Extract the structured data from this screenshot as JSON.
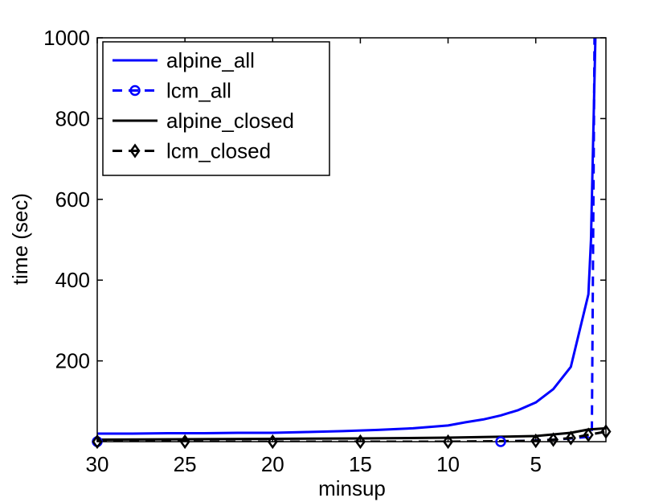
{
  "chart_data": {
    "type": "line",
    "title": "",
    "xlabel": "minsup",
    "ylabel": "time (sec)",
    "x_reversed": true,
    "xlim": [
      30,
      1
    ],
    "ylim": [
      0,
      1000
    ],
    "xticks": [
      30,
      25,
      20,
      15,
      10,
      5
    ],
    "yticks": [
      200,
      400,
      600,
      800,
      1000
    ],
    "grid": false,
    "legend_position": "top-left",
    "series": [
      {
        "name": "alpine_all",
        "color": "#0000ff",
        "line_style": "solid",
        "marker": "none",
        "x": [
          30,
          28,
          26,
          24,
          22,
          20,
          18,
          16,
          14,
          12,
          10,
          9,
          8,
          7,
          6,
          5,
          4,
          3,
          2,
          1.85,
          1.6
        ],
        "y": [
          20,
          20,
          21,
          21,
          22,
          22,
          24,
          26,
          29,
          33,
          40,
          48,
          55,
          65,
          78,
          97,
          130,
          185,
          365,
          500,
          1000
        ]
      },
      {
        "name": "lcm_all",
        "color": "#0000ff",
        "line_style": "dashed",
        "marker": "circle",
        "x": [
          30,
          7,
          5,
          4,
          3,
          2,
          1.8,
          1.65
        ],
        "y": [
          0,
          0,
          3,
          5,
          8,
          12,
          25,
          1000
        ],
        "marker_x": [
          30,
          7
        ]
      },
      {
        "name": "alpine_closed",
        "color": "#000000",
        "line_style": "solid",
        "marker": "none",
        "x": [
          30,
          25,
          20,
          15,
          10,
          5,
          4,
          3,
          2,
          1
        ],
        "y": [
          5,
          6,
          7,
          8,
          10,
          14,
          18,
          22,
          30,
          33
        ]
      },
      {
        "name": "lcm_closed",
        "color": "#000000",
        "line_style": "dashed",
        "marker": "diamond",
        "x": [
          30,
          25,
          20,
          15,
          10,
          5,
          4,
          3,
          2,
          1
        ],
        "y": [
          0,
          0,
          0,
          0,
          0,
          2,
          5,
          9,
          17,
          25
        ],
        "marker_x": [
          30,
          25,
          20,
          15,
          10,
          5,
          4,
          3,
          2,
          1
        ]
      }
    ]
  }
}
